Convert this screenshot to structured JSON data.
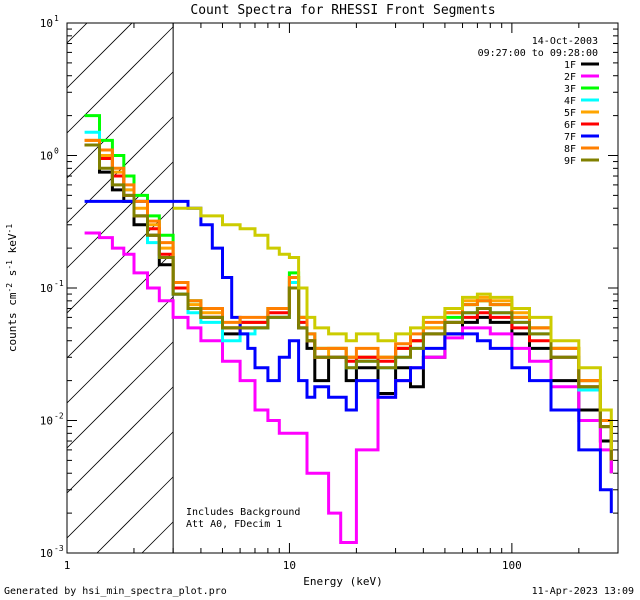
{
  "chart_data": {
    "type": "line",
    "title": "Count Spectra for RHESSI Front Segments",
    "xlabel": "Energy (keV)",
    "ylabel": "counts cm-2 s-1 keV-1",
    "xscale": "log",
    "yscale": "log",
    "xlim": [
      1,
      300
    ],
    "ylim": [
      0.001,
      10
    ],
    "date": "14-Oct-2003",
    "time_range": "09:27:00 to 09:28:00",
    "notes": [
      "Includes Background",
      "Att A0, FDecim 1"
    ],
    "hatch_region_keV": [
      1,
      3
    ],
    "x_ticks": [
      {
        "value": 1,
        "label": "1"
      },
      {
        "value": 10,
        "label": "10"
      },
      {
        "value": 100,
        "label": "100"
      }
    ],
    "y_ticks": [
      {
        "value": 0.001,
        "base": "10",
        "exp": "-3"
      },
      {
        "value": 0.01,
        "base": "10",
        "exp": "-2"
      },
      {
        "value": 0.1,
        "base": "10",
        "exp": "-1"
      },
      {
        "value": 1,
        "base": "10",
        "exp": "0"
      },
      {
        "value": 10,
        "base": "10",
        "exp": "1"
      }
    ],
    "series": [
      {
        "name": "1F",
        "color": "#000000",
        "x": [
          1.2,
          1.4,
          1.6,
          1.8,
          2.0,
          2.3,
          2.6,
          3.0,
          3.5,
          4,
          5,
          6,
          7,
          8,
          9,
          10,
          11,
          12,
          13,
          15,
          18,
          20,
          25,
          30,
          35,
          40,
          50,
          60,
          70,
          80,
          100,
          120,
          150,
          200,
          250,
          280
        ],
        "y": [
          1.2,
          0.75,
          0.55,
          0.45,
          0.3,
          0.25,
          0.15,
          0.09,
          0.07,
          0.06,
          0.045,
          0.05,
          0.05,
          0.06,
          0.06,
          0.1,
          0.05,
          0.035,
          0.02,
          0.03,
          0.02,
          0.025,
          0.016,
          0.025,
          0.018,
          0.03,
          0.045,
          0.055,
          0.06,
          0.055,
          0.045,
          0.035,
          0.02,
          0.012,
          0.007,
          0.004
        ]
      },
      {
        "name": "2F",
        "color": "#ff00ff",
        "x": [
          1.2,
          1.4,
          1.6,
          1.8,
          2.0,
          2.3,
          2.6,
          3.0,
          3.5,
          4,
          5,
          6,
          7,
          8,
          9,
          10,
          12,
          15,
          17,
          20,
          25,
          30,
          35,
          40,
          50,
          60,
          70,
          80,
          100,
          120,
          150,
          200,
          250,
          280
        ],
        "y": [
          0.26,
          0.24,
          0.2,
          0.18,
          0.13,
          0.1,
          0.08,
          0.06,
          0.05,
          0.04,
          0.028,
          0.02,
          0.012,
          0.01,
          0.008,
          0.008,
          0.004,
          0.002,
          0.0012,
          0.006,
          0.015,
          0.02,
          0.025,
          0.03,
          0.042,
          0.05,
          0.05,
          0.045,
          0.035,
          0.028,
          0.018,
          0.01,
          0.006,
          0.004
        ]
      },
      {
        "name": "3F",
        "color": "#00ff00",
        "x": [
          1.2,
          1.4,
          1.6,
          1.8,
          2.0,
          2.3,
          2.6,
          3.0,
          3.5,
          4,
          5,
          6,
          7,
          8,
          9,
          10,
          11,
          12,
          13,
          15,
          18,
          20,
          25,
          30,
          35,
          40,
          50,
          60,
          70,
          80,
          100,
          120,
          150,
          200,
          250,
          280
        ],
        "y": [
          2.0,
          1.3,
          1.0,
          0.7,
          0.5,
          0.35,
          0.25,
          0.11,
          0.08,
          0.07,
          0.05,
          0.055,
          0.055,
          0.07,
          0.07,
          0.13,
          0.06,
          0.045,
          0.035,
          0.035,
          0.03,
          0.03,
          0.03,
          0.035,
          0.04,
          0.05,
          0.06,
          0.075,
          0.08,
          0.075,
          0.06,
          0.05,
          0.035,
          0.02,
          0.01,
          0.005
        ]
      },
      {
        "name": "4F",
        "color": "#00ffff",
        "x": [
          1.2,
          1.4,
          1.6,
          1.8,
          2.0,
          2.3,
          2.6,
          3.0,
          3.5,
          4,
          5,
          6,
          7,
          8,
          9,
          10,
          11,
          12,
          13,
          15,
          18,
          20,
          25,
          30,
          35,
          40,
          50,
          60,
          70,
          80,
          100,
          120,
          150,
          200,
          250,
          280
        ],
        "y": [
          1.5,
          1.0,
          0.7,
          0.55,
          0.35,
          0.22,
          0.17,
          0.09,
          0.065,
          0.055,
          0.04,
          0.045,
          0.05,
          0.06,
          0.06,
          0.11,
          0.055,
          0.04,
          0.03,
          0.03,
          0.025,
          0.028,
          0.025,
          0.03,
          0.035,
          0.045,
          0.055,
          0.065,
          0.07,
          0.065,
          0.055,
          0.045,
          0.03,
          0.017,
          0.009,
          0.005
        ]
      },
      {
        "name": "5F",
        "color": "#ffa500",
        "x": [
          1.2,
          1.4,
          1.6,
          1.8,
          2.0,
          2.3,
          2.6,
          3.0,
          3.5,
          4,
          5,
          6,
          7,
          8,
          9,
          10,
          11,
          12,
          13,
          15,
          18,
          20,
          25,
          30,
          35,
          40,
          50,
          60,
          70,
          80,
          100,
          120,
          150,
          200,
          250,
          280
        ],
        "y": [
          1.3,
          1.0,
          0.75,
          0.55,
          0.4,
          0.3,
          0.2,
          0.1,
          0.075,
          0.065,
          0.05,
          0.055,
          0.055,
          0.07,
          0.07,
          0.12,
          0.06,
          0.04,
          0.03,
          0.035,
          0.03,
          0.03,
          0.03,
          0.035,
          0.04,
          0.05,
          0.065,
          0.08,
          0.085,
          0.08,
          0.065,
          0.05,
          0.035,
          0.02,
          0.01,
          0.005
        ]
      },
      {
        "name": "6F",
        "color": "#ff0000",
        "x": [
          1.2,
          1.4,
          1.6,
          1.8,
          2.0,
          2.3,
          2.6,
          3.0,
          3.5,
          4,
          5,
          6,
          7,
          8,
          9,
          10,
          11,
          12,
          13,
          15,
          18,
          20,
          25,
          30,
          35,
          40,
          50,
          60,
          70,
          80,
          100,
          120,
          150,
          200,
          250,
          280
        ],
        "y": [
          1.2,
          0.95,
          0.7,
          0.5,
          0.35,
          0.28,
          0.18,
          0.1,
          0.07,
          0.06,
          0.05,
          0.055,
          0.055,
          0.065,
          0.065,
          0.1,
          0.055,
          0.04,
          0.03,
          0.03,
          0.028,
          0.03,
          0.028,
          0.035,
          0.04,
          0.045,
          0.055,
          0.06,
          0.065,
          0.06,
          0.05,
          0.04,
          0.03,
          0.018,
          0.009,
          0.005
        ]
      },
      {
        "name": "7F",
        "color": "#0000ff",
        "x": [
          1.2,
          1.4,
          1.6,
          1.8,
          2.0,
          2.3,
          2.6,
          3.0,
          3.5,
          4,
          4.5,
          5,
          5.5,
          6,
          6.5,
          7,
          8,
          9,
          10,
          11,
          12,
          13,
          15,
          18,
          20,
          25,
          30,
          35,
          40,
          50,
          60,
          70,
          80,
          100,
          120,
          150,
          200,
          250,
          280
        ],
        "y": [
          0.45,
          0.45,
          0.45,
          0.45,
          0.45,
          0.45,
          0.45,
          0.45,
          0.4,
          0.3,
          0.2,
          0.12,
          0.06,
          0.045,
          0.035,
          0.025,
          0.02,
          0.03,
          0.04,
          0.02,
          0.015,
          0.018,
          0.015,
          0.012,
          0.02,
          0.015,
          0.02,
          0.025,
          0.035,
          0.045,
          0.045,
          0.04,
          0.035,
          0.025,
          0.02,
          0.012,
          0.006,
          0.003,
          0.002
        ]
      },
      {
        "name": "8F",
        "color": "#ff7f00",
        "x": [
          1.2,
          1.4,
          1.6,
          1.8,
          2.0,
          2.3,
          2.6,
          3.0,
          3.5,
          4,
          5,
          6,
          7,
          8,
          9,
          10,
          11,
          12,
          13,
          15,
          18,
          20,
          25,
          30,
          35,
          40,
          50,
          60,
          70,
          80,
          100,
          120,
          150,
          200,
          250,
          280
        ],
        "y": [
          1.3,
          1.1,
          0.8,
          0.6,
          0.45,
          0.32,
          0.22,
          0.11,
          0.08,
          0.07,
          0.055,
          0.06,
          0.06,
          0.07,
          0.07,
          0.12,
          0.06,
          0.045,
          0.035,
          0.035,
          0.03,
          0.035,
          0.03,
          0.038,
          0.045,
          0.055,
          0.065,
          0.075,
          0.08,
          0.075,
          0.06,
          0.05,
          0.035,
          0.02,
          0.01,
          0.005
        ]
      },
      {
        "name": "9F",
        "color": "#808000",
        "x": [
          1.2,
          1.4,
          1.6,
          1.8,
          2.0,
          2.3,
          2.6,
          3.0,
          3.5,
          4,
          5,
          6,
          7,
          8,
          9,
          10,
          11,
          12,
          13,
          15,
          18,
          20,
          25,
          30,
          35,
          40,
          50,
          60,
          70,
          80,
          100,
          120,
          150,
          200,
          250,
          280
        ],
        "y": [
          1.2,
          0.8,
          0.6,
          0.5,
          0.35,
          0.25,
          0.17,
          0.09,
          0.07,
          0.06,
          0.05,
          0.05,
          0.05,
          0.06,
          0.06,
          0.1,
          0.05,
          0.04,
          0.03,
          0.03,
          0.025,
          0.028,
          0.025,
          0.03,
          0.035,
          0.045,
          0.055,
          0.065,
          0.07,
          0.065,
          0.055,
          0.045,
          0.03,
          0.018,
          0.009,
          0.005
        ]
      },
      {
        "name": "",
        "color": "#cccc00",
        "x": [
          3.0,
          4,
          5,
          6,
          7,
          8,
          9,
          10,
          11,
          12,
          13,
          15,
          18,
          20,
          25,
          30,
          35,
          40,
          50,
          60,
          70,
          80,
          100,
          120,
          150,
          200,
          250,
          280
        ],
        "y": [
          0.4,
          0.35,
          0.3,
          0.28,
          0.25,
          0.2,
          0.18,
          0.17,
          0.1,
          0.06,
          0.05,
          0.045,
          0.04,
          0.045,
          0.04,
          0.045,
          0.05,
          0.06,
          0.07,
          0.085,
          0.09,
          0.085,
          0.07,
          0.06,
          0.04,
          0.025,
          0.012,
          0.006
        ]
      }
    ]
  },
  "footer": {
    "generated_by": "Generated by hsi_min_spectra_plot.pro",
    "timestamp": "11-Apr-2023 13:09"
  }
}
